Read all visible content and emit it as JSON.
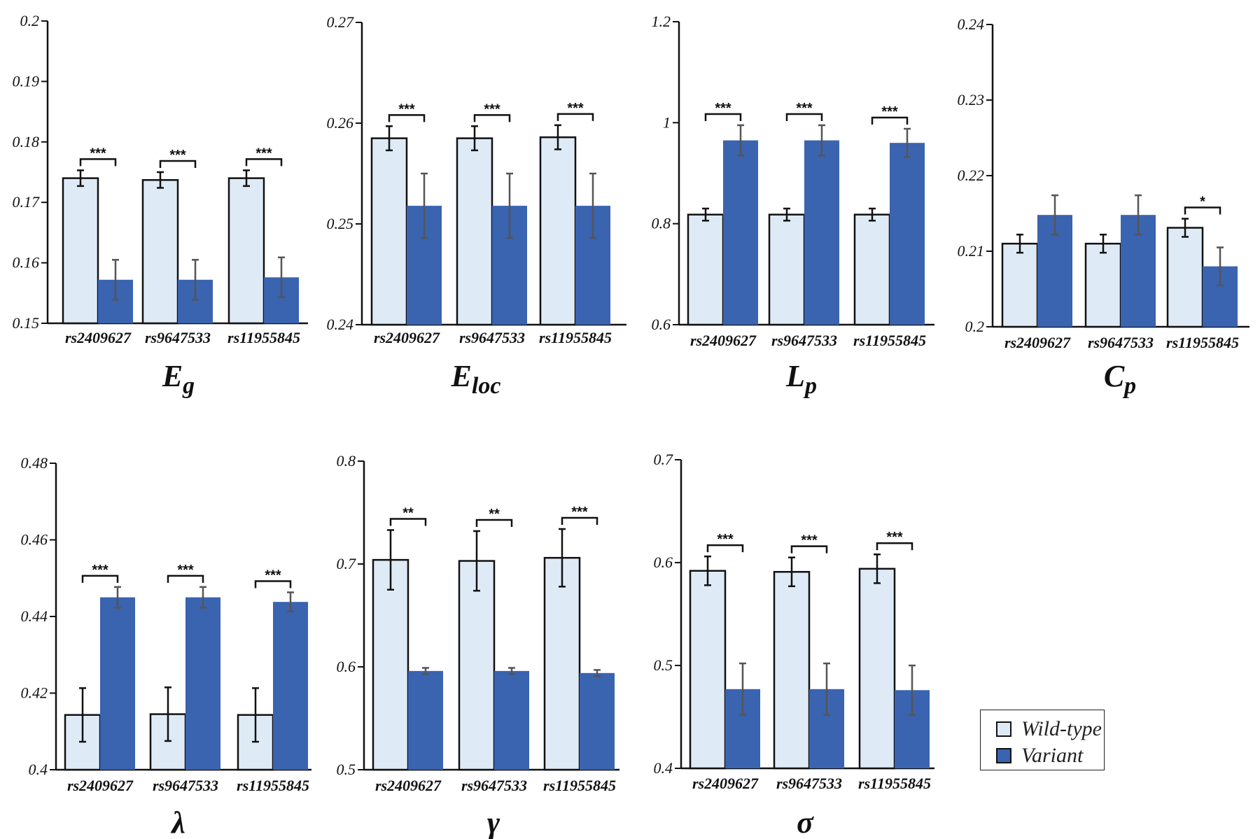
{
  "colors": {
    "wild": "#deebf7",
    "variant": "#3a63b0",
    "errbar": "#555555",
    "axis": "#111111"
  },
  "legend": {
    "wild": "Wild-type",
    "variant": "Variant"
  },
  "chart_data": [
    {
      "type": "bar",
      "title": "E",
      "title_sub": "g",
      "categories": [
        "rs2409627",
        "rs9647533",
        "rs11955845"
      ],
      "yticks": [
        "0.2",
        "0.19",
        "0.18",
        "0.17",
        "0.16",
        "0.15"
      ],
      "ylim": [
        0.15,
        0.2
      ],
      "series": [
        {
          "name": "Wild-type",
          "values": [
            0.174,
            0.1737,
            0.174
          ],
          "errors": [
            0.0013,
            0.0013,
            0.0013
          ]
        },
        {
          "name": "Variant",
          "values": [
            0.1572,
            0.1572,
            0.1576
          ],
          "errors": [
            0.0033,
            0.0033,
            0.0033
          ]
        }
      ],
      "significance": [
        "***",
        "***",
        "***"
      ]
    },
    {
      "type": "bar",
      "title": "E",
      "title_sub": "loc",
      "categories": [
        "rs2409627",
        "rs9647533",
        "rs11955845"
      ],
      "yticks": [
        "0.27",
        "0.26",
        "0.25",
        "0.24"
      ],
      "ylim": [
        0.24,
        0.27
      ],
      "series": [
        {
          "name": "Wild-type",
          "values": [
            0.2585,
            0.2585,
            0.2586
          ],
          "errors": [
            0.0012,
            0.0012,
            0.0012
          ]
        },
        {
          "name": "Variant",
          "values": [
            0.2518,
            0.2518,
            0.2518
          ],
          "errors": [
            0.0032,
            0.0032,
            0.0032
          ]
        }
      ],
      "significance": [
        "***",
        "***",
        "***"
      ]
    },
    {
      "type": "bar",
      "title": "L",
      "title_sub": "p",
      "categories": [
        "rs2409627",
        "rs9647533",
        "rs11955845"
      ],
      "yticks": [
        "1.2",
        "1",
        "0.8",
        "0.6"
      ],
      "ylim": [
        0.6,
        1.2
      ],
      "series": [
        {
          "name": "Wild-type",
          "values": [
            0.818,
            0.818,
            0.818
          ],
          "errors": [
            0.012,
            0.012,
            0.012
          ]
        },
        {
          "name": "Variant",
          "values": [
            0.965,
            0.965,
            0.96
          ],
          "errors": [
            0.03,
            0.03,
            0.028
          ]
        }
      ],
      "significance": [
        "***",
        "***",
        "***"
      ]
    },
    {
      "type": "bar",
      "title": "C",
      "title_sub": "p",
      "categories": [
        "rs2409627",
        "rs9647533",
        "rs11955845"
      ],
      "yticks": [
        "0.24",
        "0.23",
        "0.22",
        "0.21",
        "0.2"
      ],
      "ylim": [
        0.2,
        0.24
      ],
      "series": [
        {
          "name": "Wild-type",
          "values": [
            0.211,
            0.211,
            0.2131
          ],
          "errors": [
            0.0012,
            0.0012,
            0.0012
          ]
        },
        {
          "name": "Variant",
          "values": [
            0.2148,
            0.2148,
            0.208
          ],
          "errors": [
            0.0026,
            0.0026,
            0.0025
          ]
        }
      ],
      "significance": [
        "",
        "",
        "*"
      ]
    },
    {
      "type": "bar",
      "title": "λ",
      "title_sub": "",
      "categories": [
        "rs2409627",
        "rs9647533",
        "rs11955845"
      ],
      "yticks": [
        "0.48",
        "0.46",
        "0.44",
        "0.42",
        "0.4"
      ],
      "ylim": [
        0.4,
        0.48
      ],
      "series": [
        {
          "name": "Wild-type",
          "values": [
            0.4143,
            0.4145,
            0.4143
          ],
          "errors": [
            0.007,
            0.007,
            0.007
          ]
        },
        {
          "name": "Variant",
          "values": [
            0.445,
            0.445,
            0.4438
          ],
          "errors": [
            0.0027,
            0.0027,
            0.0025
          ]
        }
      ],
      "significance": [
        "***",
        "***",
        "***"
      ]
    },
    {
      "type": "bar",
      "title": "γ",
      "title_sub": "",
      "categories": [
        "rs2409627",
        "rs9647533",
        "rs11955845"
      ],
      "yticks": [
        "0.8",
        "0.7",
        "0.6",
        "0.5"
      ],
      "ylim": [
        0.5,
        0.8
      ],
      "series": [
        {
          "name": "Wild-type",
          "values": [
            0.704,
            0.703,
            0.706
          ],
          "errors": [
            0.029,
            0.029,
            0.028
          ]
        },
        {
          "name": "Variant",
          "values": [
            0.596,
            0.596,
            0.594
          ],
          "errors": [
            0.003,
            0.003,
            0.003
          ]
        }
      ],
      "significance": [
        "**",
        "**",
        "***"
      ]
    },
    {
      "type": "bar",
      "title": "σ",
      "title_sub": "",
      "categories": [
        "rs2409627",
        "rs9647533",
        "rs11955845"
      ],
      "yticks": [
        "0.7",
        "0.6",
        "0.5",
        "0.4"
      ],
      "ylim": [
        0.4,
        0.7
      ],
      "series": [
        {
          "name": "Wild-type",
          "values": [
            0.592,
            0.591,
            0.594
          ],
          "errors": [
            0.014,
            0.014,
            0.014
          ]
        },
        {
          "name": "Variant",
          "values": [
            0.477,
            0.477,
            0.476
          ],
          "errors": [
            0.025,
            0.025,
            0.024
          ]
        }
      ],
      "significance": [
        "***",
        "***",
        "***"
      ]
    }
  ]
}
